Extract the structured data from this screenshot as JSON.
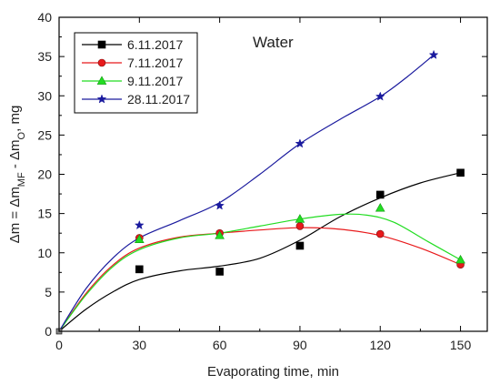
{
  "chart_data": {
    "type": "scatter",
    "title": "",
    "annotation": "Water",
    "xlabel": "Evaporating time, min",
    "ylabel": {
      "base": "Δm = Δm",
      "sub1": "MF",
      "mid": " - Δm",
      "sub2": "O",
      "unit": ",  mg"
    },
    "xlim": [
      0,
      160
    ],
    "ylim": [
      0,
      40
    ],
    "x_ticks": [
      "0",
      "30",
      "60",
      "90",
      "120",
      "150"
    ],
    "y_ticks": [
      "0",
      "5",
      "10",
      "15",
      "20",
      "25",
      "30",
      "35",
      "40"
    ],
    "grid": false,
    "legend_position": "top-left",
    "series": [
      {
        "name": "6.11.2017",
        "marker": "square",
        "color": "#000000",
        "points": [
          [
            0,
            0
          ],
          [
            30,
            7.9
          ],
          [
            60,
            7.6
          ],
          [
            90,
            10.9
          ],
          [
            120,
            17.4
          ],
          [
            150,
            20.2
          ]
        ],
        "curve": [
          [
            0,
            0
          ],
          [
            10,
            2.8
          ],
          [
            20,
            5.0
          ],
          [
            30,
            6.6
          ],
          [
            45,
            7.7
          ],
          [
            60,
            8.3
          ],
          [
            75,
            9.3
          ],
          [
            90,
            11.6
          ],
          [
            105,
            14.6
          ],
          [
            120,
            17.0
          ],
          [
            135,
            18.9
          ],
          [
            150,
            20.2
          ]
        ]
      },
      {
        "name": "7.11.2017",
        "marker": "circle",
        "color": "#e8191b",
        "points": [
          [
            0,
            0
          ],
          [
            30,
            11.9
          ],
          [
            60,
            12.5
          ],
          [
            90,
            13.4
          ],
          [
            120,
            12.4
          ],
          [
            150,
            8.5
          ]
        ],
        "curve": [
          [
            0,
            0
          ],
          [
            10,
            4.8
          ],
          [
            20,
            8.4
          ],
          [
            30,
            10.6
          ],
          [
            45,
            12.0
          ],
          [
            60,
            12.5
          ],
          [
            75,
            12.9
          ],
          [
            90,
            13.2
          ],
          [
            105,
            13.0
          ],
          [
            120,
            12.2
          ],
          [
            135,
            10.6
          ],
          [
            150,
            8.5
          ]
        ]
      },
      {
        "name": "9.11.2017",
        "marker": "triangle",
        "color": "#22dd22",
        "points": [
          [
            0,
            0
          ],
          [
            30,
            11.7
          ],
          [
            60,
            12.2
          ],
          [
            90,
            14.3
          ],
          [
            120,
            15.7
          ],
          [
            150,
            9.1
          ]
        ],
        "curve": [
          [
            0,
            0
          ],
          [
            10,
            4.6
          ],
          [
            20,
            8.2
          ],
          [
            30,
            10.4
          ],
          [
            45,
            11.9
          ],
          [
            60,
            12.5
          ],
          [
            75,
            13.4
          ],
          [
            90,
            14.3
          ],
          [
            105,
            14.9
          ],
          [
            115,
            14.8
          ],
          [
            125,
            13.9
          ],
          [
            138,
            11.4
          ],
          [
            150,
            9.1
          ]
        ]
      },
      {
        "name": "28.11.2017",
        "marker": "star",
        "color": "#1a1a9e",
        "points": [
          [
            0,
            0
          ],
          [
            30,
            13.5
          ],
          [
            60,
            16.0
          ],
          [
            90,
            23.9
          ],
          [
            120,
            29.9
          ],
          [
            140,
            35.2
          ]
        ],
        "curve": [
          [
            0,
            0
          ],
          [
            10,
            5.4
          ],
          [
            20,
            9.3
          ],
          [
            30,
            11.9
          ],
          [
            45,
            14.1
          ],
          [
            60,
            16.4
          ],
          [
            75,
            20.0
          ],
          [
            90,
            23.9
          ],
          [
            105,
            27.0
          ],
          [
            120,
            29.9
          ],
          [
            130,
            32.4
          ],
          [
            140,
            35.2
          ]
        ]
      }
    ]
  }
}
